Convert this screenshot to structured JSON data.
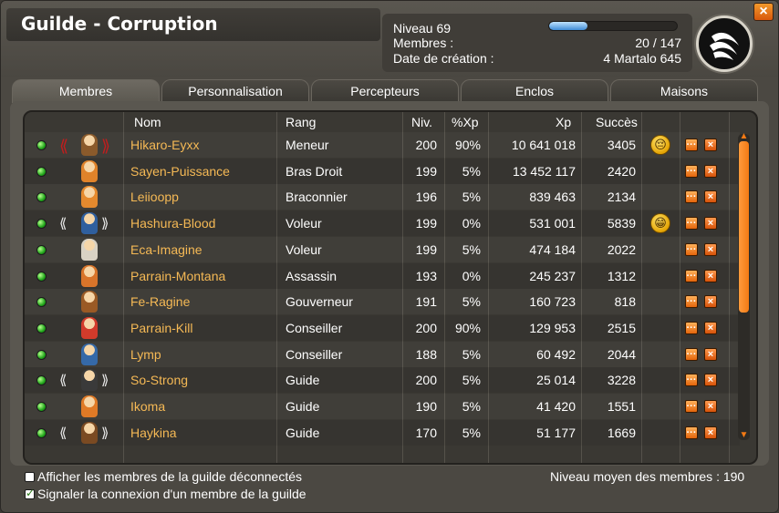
{
  "window": {
    "title": "Guilde - Corruption",
    "close_label": "×"
  },
  "info": {
    "level_label": "Niveau 69",
    "level_progress": 0.3,
    "members_label": "Membres :",
    "members_value": "20 / 147",
    "created_label": "Date de création :",
    "created_value": "4 Martalo 645"
  },
  "tabs": [
    {
      "label": "Membres",
      "active": true
    },
    {
      "label": "Personnalisation",
      "active": false
    },
    {
      "label": "Percepteurs",
      "active": false
    },
    {
      "label": "Enclos",
      "active": false
    },
    {
      "label": "Maisons",
      "active": false
    }
  ],
  "table": {
    "headers": {
      "nom": "Nom",
      "rang": "Rang",
      "niv": "Niv.",
      "xp_pct": "%Xp",
      "xp": "Xp",
      "succes": "Succès"
    },
    "rows": [
      {
        "name": "Hikaro-Eyxx",
        "rank": "Meneur",
        "level": "200",
        "xp_pct": "90%",
        "xp": "10 641 018",
        "success": "3405",
        "online": true,
        "avatar_color": "#8a5a2b",
        "wings": "red",
        "achievement": "😔"
      },
      {
        "name": "Sayen-Puissance",
        "rank": "Bras Droit",
        "level": "199",
        "xp_pct": "5%",
        "xp": "13 452 117",
        "success": "2420",
        "online": true,
        "avatar_color": "#e0832a",
        "wings": "",
        "achievement": ""
      },
      {
        "name": "Leiioopp",
        "rank": "Braconnier",
        "level": "196",
        "xp_pct": "5%",
        "xp": "839 463",
        "success": "2134",
        "online": true,
        "avatar_color": "#e58a2e",
        "wings": "",
        "achievement": ""
      },
      {
        "name": "Hashura-Blood",
        "rank": "Voleur",
        "level": "199",
        "xp_pct": "0%",
        "xp": "531 001",
        "success": "5839",
        "online": true,
        "avatar_color": "#2f5f9e",
        "wings": "white",
        "achievement": "😁"
      },
      {
        "name": "Eca-Imagine",
        "rank": "Voleur",
        "level": "199",
        "xp_pct": "5%",
        "xp": "474 184",
        "success": "2022",
        "online": true,
        "avatar_color": "#d9d2c4",
        "wings": "",
        "achievement": ""
      },
      {
        "name": "Parrain-Montana",
        "rank": "Assassin",
        "level": "193",
        "xp_pct": "0%",
        "xp": "245 237",
        "success": "1312",
        "online": true,
        "avatar_color": "#d8742a",
        "wings": "",
        "achievement": ""
      },
      {
        "name": "Fe-Ragine",
        "rank": "Gouverneur",
        "level": "191",
        "xp_pct": "5%",
        "xp": "160 723",
        "success": "818",
        "online": true,
        "avatar_color": "#9a5a25",
        "wings": "",
        "achievement": ""
      },
      {
        "name": "Parrain-Kill",
        "rank": "Conseiller",
        "level": "200",
        "xp_pct": "90%",
        "xp": "129 953",
        "success": "2515",
        "online": true,
        "avatar_color": "#d23b2b",
        "wings": "",
        "achievement": ""
      },
      {
        "name": "Lymp",
        "rank": "Conseiller",
        "level": "188",
        "xp_pct": "5%",
        "xp": "60 492",
        "success": "2044",
        "online": true,
        "avatar_color": "#3569a8",
        "wings": "",
        "achievement": ""
      },
      {
        "name": "So-Strong",
        "rank": "Guide",
        "level": "200",
        "xp_pct": "5%",
        "xp": "25 014",
        "success": "3228",
        "online": true,
        "avatar_color": "#3a3a3a",
        "wings": "white",
        "achievement": ""
      },
      {
        "name": "Ikoma",
        "rank": "Guide",
        "level": "190",
        "xp_pct": "5%",
        "xp": "41 420",
        "success": "1551",
        "online": true,
        "avatar_color": "#e07a26",
        "wings": "",
        "achievement": ""
      },
      {
        "name": "Haykina",
        "rank": "Guide",
        "level": "170",
        "xp_pct": "5%",
        "xp": "51 177",
        "success": "1669",
        "online": true,
        "avatar_color": "#7a4a22",
        "wings": "white",
        "achievement": ""
      }
    ],
    "menu_button_label": "···",
    "delete_button_label": "×"
  },
  "footer": {
    "show_offline_label": "Afficher les membres de la guilde déconnectés",
    "show_offline_checked": false,
    "notify_label": "Signaler la connexion d'un membre de la guilde",
    "notify_checked": true,
    "avg_level_label": "Niveau moyen des membres : 190"
  },
  "colors": {
    "name_color": "#f5b955",
    "accent_orange": "#f37a14",
    "online_green": "#21a51b"
  }
}
